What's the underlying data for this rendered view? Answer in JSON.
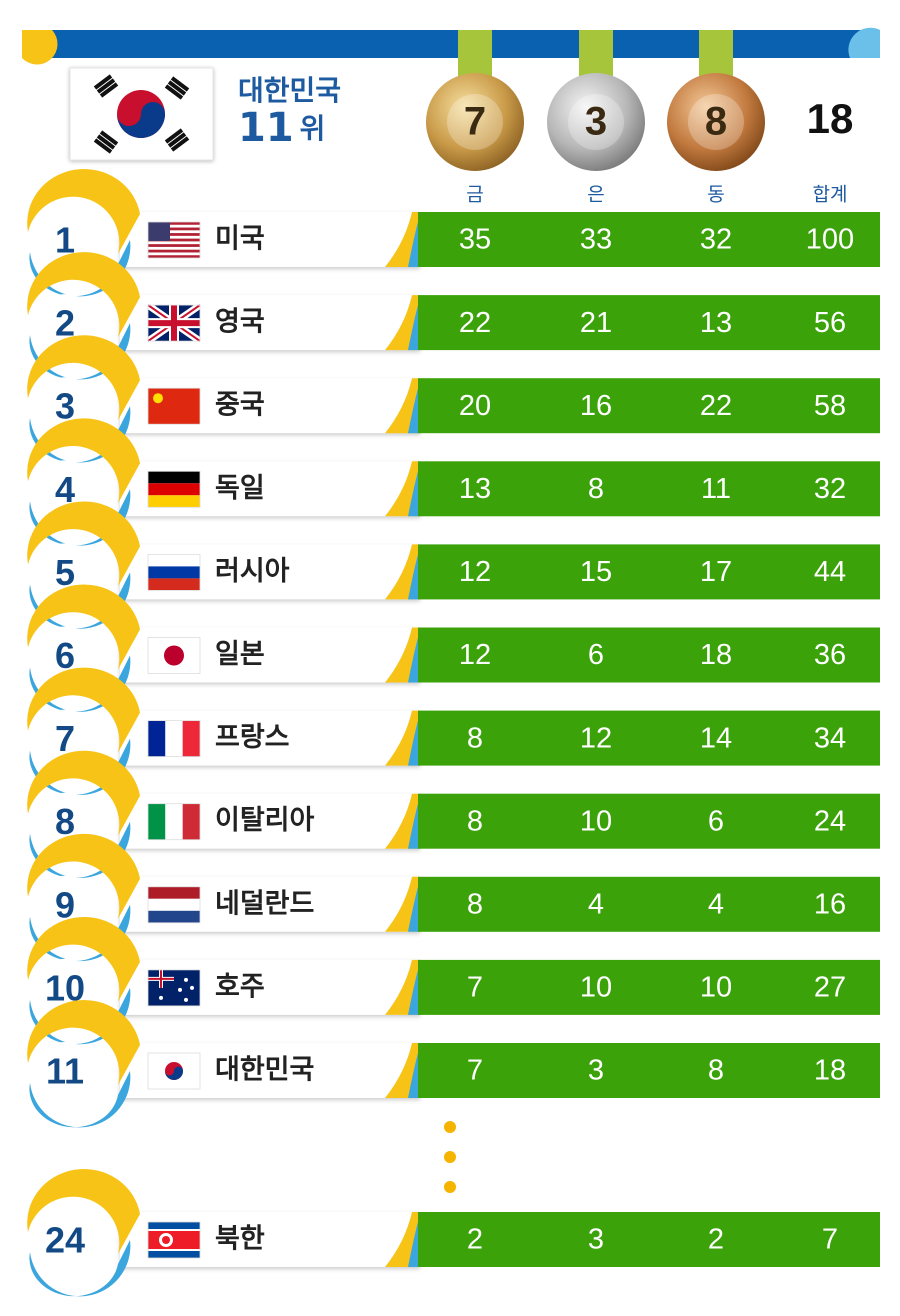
{
  "header": {
    "country": "대한민국",
    "rank": "11",
    "rank_suffix": "위",
    "gold": 7,
    "silver": 3,
    "bronze": 8,
    "total": 18
  },
  "columns": [
    "금",
    "은",
    "동",
    "합계"
  ],
  "rows": [
    {
      "rank": 1,
      "country": "미국",
      "gold": 35,
      "silver": 33,
      "bronze": 32,
      "total": 100
    },
    {
      "rank": 2,
      "country": "영국",
      "gold": 22,
      "silver": 21,
      "bronze": 13,
      "total": 56
    },
    {
      "rank": 3,
      "country": "중국",
      "gold": 20,
      "silver": 16,
      "bronze": 22,
      "total": 58
    },
    {
      "rank": 4,
      "country": "독일",
      "gold": 13,
      "silver": 8,
      "bronze": 11,
      "total": 32
    },
    {
      "rank": 5,
      "country": "러시아",
      "gold": 12,
      "silver": 15,
      "bronze": 17,
      "total": 44
    },
    {
      "rank": 6,
      "country": "일본",
      "gold": 12,
      "silver": 6,
      "bronze": 18,
      "total": 36
    },
    {
      "rank": 7,
      "country": "프랑스",
      "gold": 8,
      "silver": 12,
      "bronze": 14,
      "total": 34
    },
    {
      "rank": 8,
      "country": "이탈리아",
      "gold": 8,
      "silver": 10,
      "bronze": 6,
      "total": 24
    },
    {
      "rank": 9,
      "country": "네덜란드",
      "gold": 8,
      "silver": 4,
      "bronze": 4,
      "total": 16
    },
    {
      "rank": 10,
      "country": "호주",
      "gold": 7,
      "silver": 10,
      "bronze": 10,
      "total": 27
    },
    {
      "rank": 11,
      "country": "대한민국",
      "gold": 7,
      "silver": 3,
      "bronze": 8,
      "total": 18
    },
    {
      "rank": 24,
      "country": "북한",
      "gold": 2,
      "silver": 3,
      "bronze": 2,
      "total": 7
    }
  ]
}
